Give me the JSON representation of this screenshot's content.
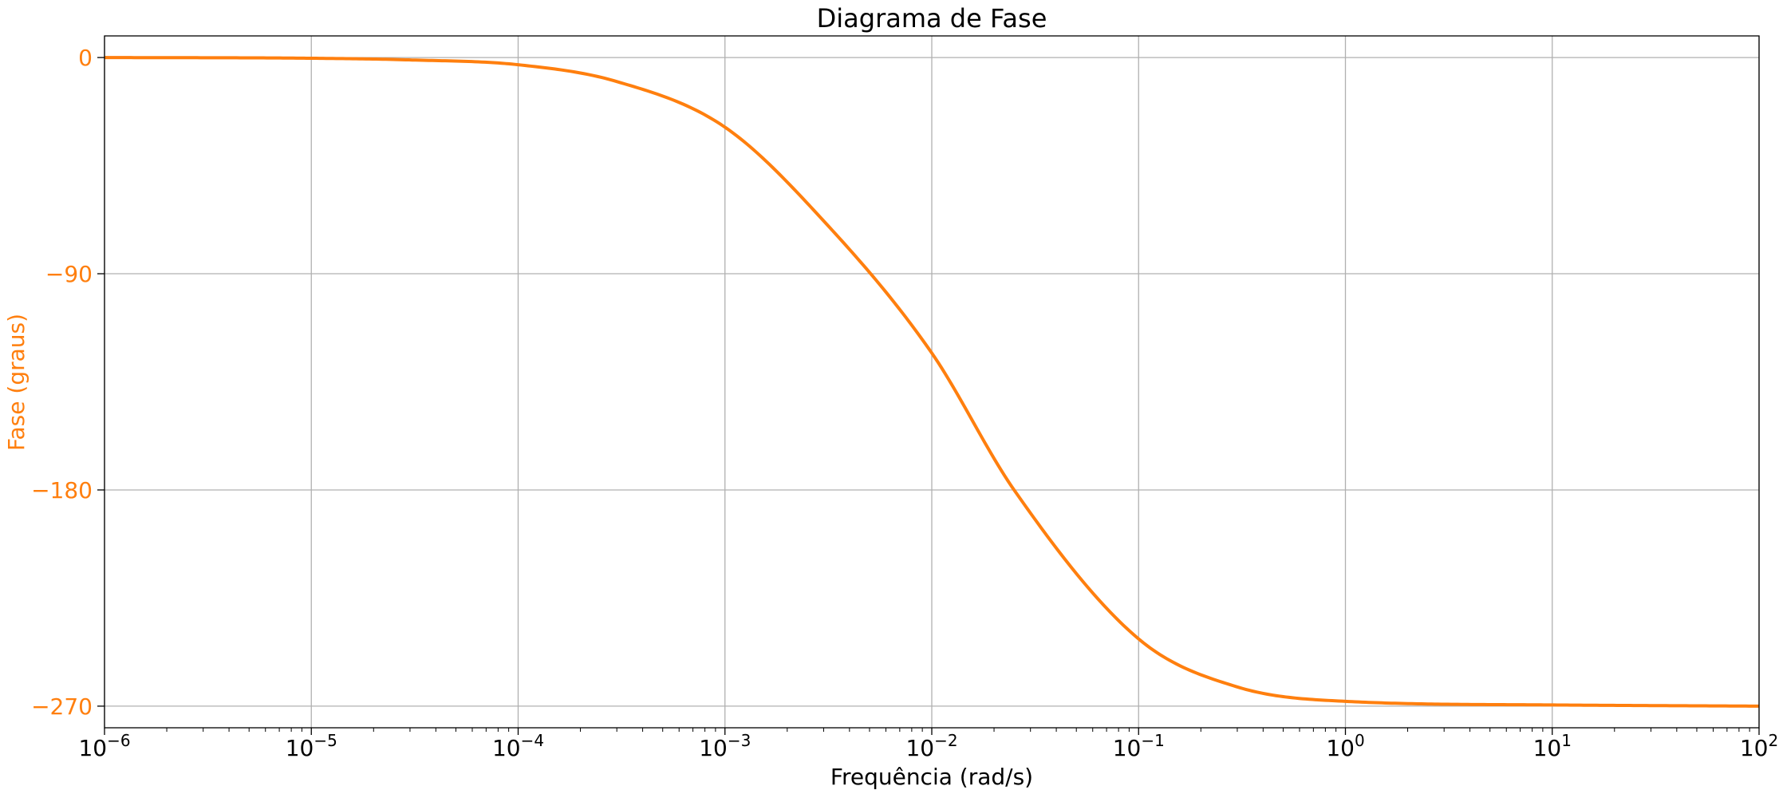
{
  "colors": {
    "series": "#ff7f0e",
    "axis": "#000000",
    "grid": "#b0b0b0",
    "ylabel": "#ff7f0e",
    "ytick": "#ff7f0e",
    "xtick": "#000000"
  },
  "chart_data": {
    "type": "line",
    "title": "Diagrama de Fase",
    "xlabel": "Frequência (rad/s)",
    "ylabel": "Fase (graus)",
    "xscale": "log",
    "xlim": [
      1e-06,
      100
    ],
    "ylim": [
      -279,
      9
    ],
    "grid": true,
    "x_ticks": [
      {
        "base": "10",
        "exp": "−6",
        "value": 1e-06
      },
      {
        "base": "10",
        "exp": "−5",
        "value": 1e-05
      },
      {
        "base": "10",
        "exp": "−4",
        "value": 0.0001
      },
      {
        "base": "10",
        "exp": "−3",
        "value": 0.001
      },
      {
        "base": "10",
        "exp": "−2",
        "value": 0.01
      },
      {
        "base": "10",
        "exp": "−1",
        "value": 0.1
      },
      {
        "base": "10",
        "exp": "0",
        "value": 1
      },
      {
        "base": "10",
        "exp": "1",
        "value": 10
      },
      {
        "base": "10",
        "exp": "2",
        "value": 100
      }
    ],
    "y_ticks": [
      {
        "label": "0",
        "value": 0
      },
      {
        "label": "−90",
        "value": -90
      },
      {
        "label": "−180",
        "value": -180
      },
      {
        "label": "−270",
        "value": -270
      }
    ],
    "series": [
      {
        "name": "Fase",
        "x": [
          1e-06,
          1e-05,
          3e-05,
          0.0001,
          0.0003,
          0.001,
          0.003,
          0.01,
          0.025,
          0.1,
          0.3,
          1,
          10,
          100
        ],
        "y": [
          0,
          -0.3,
          -1,
          -3,
          -10,
          -29,
          -68,
          -123,
          -180,
          -242,
          -262,
          -268,
          -269.5,
          -270
        ]
      }
    ]
  }
}
